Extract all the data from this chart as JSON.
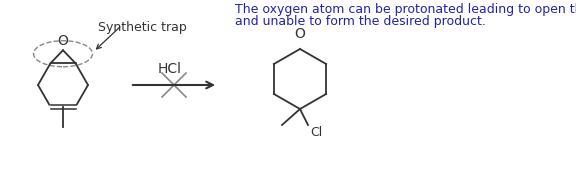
{
  "annotation_text_line1": "The oxygen atom can be protonated leading to open the ring",
  "annotation_text_line2": "and unable to form the desired product.",
  "annotation_color": "#2222aa",
  "annotation_fontsize": 9.0,
  "synthetic_trap_label": "Synthetic trap",
  "hcl_label": "HCl",
  "cl_label": "Cl",
  "o_label_left": "O",
  "o_label_right": "O",
  "background_color": "#ffffff",
  "line_color": "#333333",
  "arrow_color": "#333333",
  "cross_color": "#888888",
  "dashed_color": "#888888",
  "fontsize_labels": 9,
  "figsize": [
    5.76,
    1.77
  ],
  "dpi": 100
}
